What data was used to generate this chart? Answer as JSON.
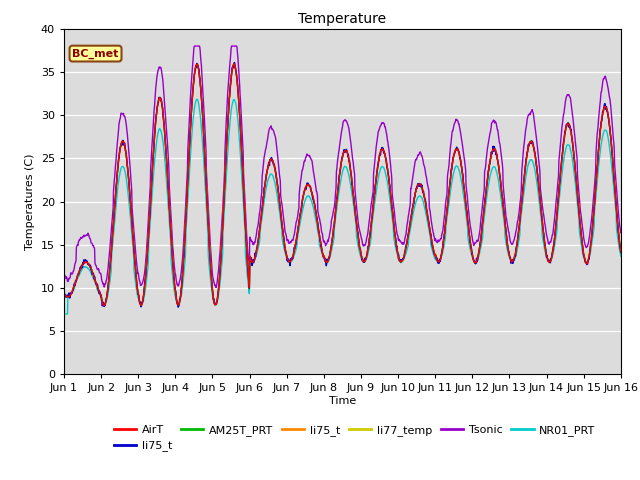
{
  "title": "Temperature",
  "ylabel": "Temperatures (C)",
  "xlabel": "Time",
  "ylim": [
    0,
    40
  ],
  "xlim": [
    0,
    15
  ],
  "bg_color": "#dcdcdc",
  "fig_bg": "#ffffff",
  "annotation_text": "BC_met",
  "annotation_color": "#8b0000",
  "annotation_bg": "#ffff99",
  "annotation_border": "#8b4513",
  "series_colors": {
    "AirT": "#ff0000",
    "li75_t_blue": "#0000cc",
    "AM25T_PRT": "#00bb00",
    "li75_t_orange": "#ff8800",
    "li77_temp": "#cccc00",
    "Tsonic": "#9900cc",
    "NR01_PRT": "#00cccc"
  },
  "tick_labels": [
    "Jun 1",
    "Jun 2",
    "Jun 3",
    "Jun 4",
    "Jun 5",
    "Jun 6",
    "Jun 7",
    "Jun 8",
    "Jun 9",
    "Jun 10",
    "Jun 11",
    "Jun 12",
    "Jun 13",
    "Jun 14",
    "Jun 15",
    "Jun 16"
  ],
  "tick_positions": [
    0,
    1,
    2,
    3,
    4,
    5,
    6,
    7,
    8,
    9,
    10,
    11,
    12,
    13,
    14,
    15
  ],
  "yticks": [
    0,
    5,
    10,
    15,
    20,
    25,
    30,
    35,
    40
  ],
  "n_points": 1440,
  "seed": 42
}
